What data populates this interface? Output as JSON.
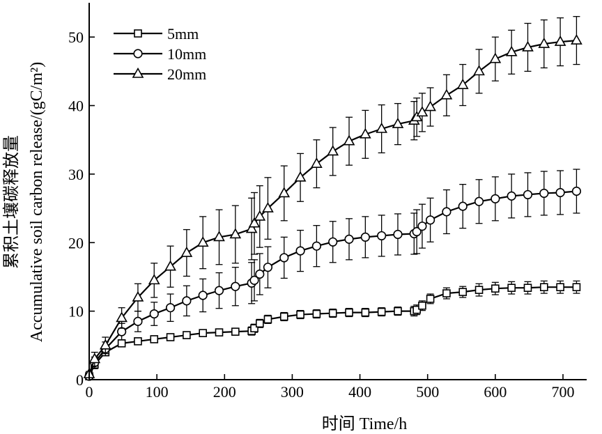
{
  "chart_data": {
    "type": "line",
    "xlabel": "时间 Time/h",
    "ylabel_cn": "累积土壤碳释放量",
    "ylabel_en": "Accumulative soil carbon release/(gC/m²)",
    "xlim": [
      0,
      735
    ],
    "ylim": [
      0,
      55
    ],
    "xticks": [
      0,
      100,
      200,
      300,
      400,
      500,
      600,
      700
    ],
    "yticks": [
      0,
      10,
      20,
      30,
      40,
      50
    ],
    "grid": false,
    "legend_position": "top-left",
    "series": [
      {
        "name": "5mm",
        "marker": "square",
        "x": [
          0,
          8,
          24,
          48,
          72,
          96,
          120,
          144,
          168,
          192,
          216,
          240,
          244,
          252,
          264,
          288,
          312,
          336,
          360,
          384,
          408,
          432,
          456,
          480,
          484,
          492,
          504,
          528,
          552,
          576,
          600,
          624,
          648,
          672,
          696,
          720
        ],
        "y": [
          0.5,
          2.2,
          4.0,
          5.3,
          5.6,
          5.9,
          6.2,
          6.5,
          6.8,
          6.9,
          7.0,
          7.1,
          7.5,
          8.2,
          8.8,
          9.2,
          9.5,
          9.6,
          9.7,
          9.8,
          9.8,
          9.9,
          10.0,
          10.0,
          10.2,
          10.8,
          11.8,
          12.6,
          12.8,
          13.1,
          13.3,
          13.4,
          13.4,
          13.5,
          13.5,
          13.5
        ],
        "err": [
          0.3,
          0.6,
          0.5,
          0.5,
          0.5,
          0.5,
          0.5,
          0.5,
          0.5,
          0.5,
          0.5,
          0.6,
          0.6,
          0.6,
          0.6,
          0.6,
          0.6,
          0.6,
          0.6,
          0.6,
          0.6,
          0.6,
          0.6,
          0.7,
          0.7,
          0.7,
          0.7,
          0.8,
          0.8,
          0.9,
          0.9,
          0.9,
          0.9,
          0.9,
          0.9,
          0.9
        ]
      },
      {
        "name": "10mm",
        "marker": "circle",
        "x": [
          0,
          8,
          24,
          48,
          72,
          96,
          120,
          144,
          168,
          192,
          216,
          240,
          244,
          252,
          264,
          288,
          312,
          336,
          360,
          384,
          408,
          432,
          456,
          480,
          484,
          492,
          504,
          528,
          552,
          576,
          600,
          624,
          648,
          672,
          696,
          720
        ],
        "y": [
          0.5,
          2.5,
          4.5,
          7.0,
          8.5,
          9.6,
          10.5,
          11.5,
          12.3,
          13.0,
          13.6,
          14.1,
          14.5,
          15.4,
          16.4,
          17.8,
          18.8,
          19.5,
          20.1,
          20.5,
          20.8,
          21.0,
          21.2,
          21.3,
          21.6,
          22.4,
          23.3,
          24.5,
          25.3,
          26.0,
          26.4,
          26.8,
          27.0,
          27.2,
          27.3,
          27.5
        ],
        "err": [
          0.3,
          0.8,
          1.0,
          1.2,
          1.5,
          1.7,
          2.0,
          2.2,
          2.4,
          2.6,
          2.8,
          3.0,
          3.0,
          3.0,
          3.0,
          3.0,
          3.0,
          3.0,
          3.0,
          3.0,
          3.0,
          3.0,
          3.0,
          3.0,
          3.2,
          3.2,
          3.2,
          3.2,
          3.2,
          3.2,
          3.2,
          3.2,
          3.2,
          3.2,
          3.2,
          3.2
        ]
      },
      {
        "name": "20mm",
        "marker": "triangle",
        "x": [
          0,
          8,
          24,
          48,
          72,
          96,
          120,
          144,
          168,
          192,
          216,
          240,
          244,
          252,
          264,
          288,
          312,
          336,
          360,
          384,
          408,
          432,
          456,
          480,
          484,
          492,
          504,
          528,
          552,
          576,
          600,
          624,
          648,
          672,
          696,
          720
        ],
        "y": [
          0.8,
          3.0,
          5.0,
          9.0,
          12.0,
          14.5,
          16.5,
          18.5,
          20.0,
          20.8,
          21.2,
          22.0,
          22.8,
          23.8,
          25.0,
          27.2,
          29.5,
          31.5,
          33.3,
          34.8,
          35.8,
          36.6,
          37.3,
          37.8,
          38.3,
          39.0,
          39.8,
          41.5,
          43.0,
          45.0,
          46.8,
          47.8,
          48.5,
          49.0,
          49.3,
          49.5
        ],
        "err": [
          0.4,
          1.0,
          1.2,
          1.5,
          2.0,
          2.5,
          3.0,
          3.4,
          3.8,
          4.0,
          4.2,
          4.5,
          4.5,
          4.5,
          4.5,
          4.0,
          3.5,
          3.5,
          3.5,
          3.5,
          3.5,
          3.5,
          3.0,
          2.8,
          2.8,
          2.8,
          2.8,
          3.0,
          3.0,
          3.2,
          3.2,
          3.2,
          3.5,
          3.5,
          3.5,
          3.5
        ]
      }
    ]
  }
}
